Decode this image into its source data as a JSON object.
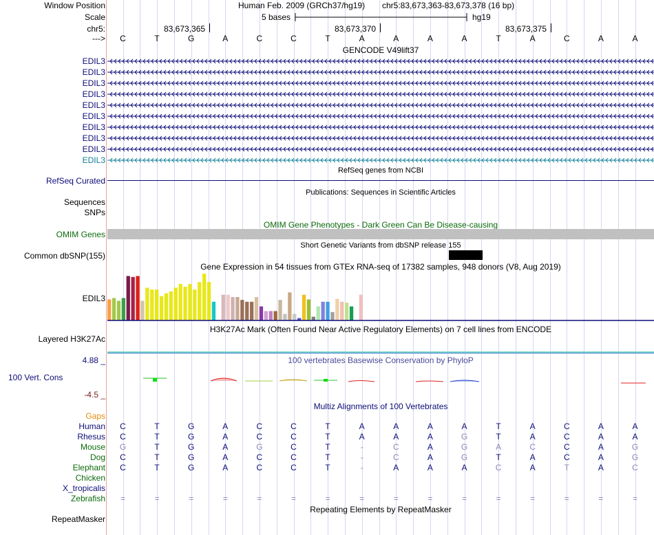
{
  "position": {
    "label": "Window Position",
    "assembly": "Human Feb. 2009 (GRCh37/hg19)",
    "range": "chr5:83,673,363-83,673,378 (16 bp)"
  },
  "scale": {
    "label": "Scale",
    "text": "5 bases",
    "db": "hg19"
  },
  "ruler": {
    "chrom_label": "chr5:",
    "ticks": [
      "83,673,365",
      "83,673,370",
      "83,673,375"
    ]
  },
  "bases": {
    "label": "--->",
    "seq": [
      "C",
      "T",
      "G",
      "A",
      "C",
      "C",
      "T",
      "A",
      "A",
      "A",
      "A",
      "T",
      "A",
      "C",
      "A",
      "A"
    ]
  },
  "gencode": {
    "title": "GENCODE V49lift37",
    "transcripts": [
      "EDIL3",
      "EDIL3",
      "EDIL3",
      "EDIL3",
      "EDIL3",
      "EDIL3",
      "EDIL3",
      "EDIL3",
      "EDIL3",
      "EDIL3"
    ],
    "colors": [
      "#0c0c78",
      "#0c0c78",
      "#0c0c78",
      "#0c0c78",
      "#0c0c78",
      "#0c0c78",
      "#0c0c78",
      "#0c0c78",
      "#0c0c78",
      "#12809a"
    ]
  },
  "refseq": {
    "title": "RefSeq genes from NCBI",
    "label": "RefSeq Curated"
  },
  "publications": {
    "title": "Publications: Sequences in Scientific Articles",
    "label1": "Sequences",
    "label2": "SNPs"
  },
  "omim": {
    "title": "OMIM Gene Phenotypes - Dark Green Can Be Disease-causing",
    "label": "OMIM Genes"
  },
  "dbsnp": {
    "title": "Short Genetic Variants from dbSNP release 155",
    "label": "Common dbSNP(155)"
  },
  "gtex": {
    "title": "Gene Expression in 54 tissues from GTEx RNA-seq of 17382 samples, 948 donors (V8, Aug 2019)",
    "label": "EDIL3",
    "bars": [
      {
        "v": 0.45,
        "c": "#f9a040"
      },
      {
        "v": 0.48,
        "c": "#a2c84a"
      },
      {
        "v": 0.42,
        "c": "#a2c84a"
      },
      {
        "v": 0.48,
        "c": "#38a048"
      },
      {
        "v": 0.95,
        "c": "#7a1a4a"
      },
      {
        "v": 0.93,
        "c": "#a8204a"
      },
      {
        "v": 0.95,
        "c": "#e02010"
      },
      {
        "v": 0.42,
        "c": "#d4c4a8"
      },
      {
        "v": 0.7,
        "c": "#e8e818"
      },
      {
        "v": 0.66,
        "c": "#e8e818"
      },
      {
        "v": 0.66,
        "c": "#e8e818"
      },
      {
        "v": 0.52,
        "c": "#e8e818"
      },
      {
        "v": 0.58,
        "c": "#e8e818"
      },
      {
        "v": 0.62,
        "c": "#e8e818"
      },
      {
        "v": 0.7,
        "c": "#e8e818"
      },
      {
        "v": 0.78,
        "c": "#e8e818"
      },
      {
        "v": 0.72,
        "c": "#e8e818"
      },
      {
        "v": 0.78,
        "c": "#e8e818"
      },
      {
        "v": 0.66,
        "c": "#e8e818"
      },
      {
        "v": 0.82,
        "c": "#e8e818"
      },
      {
        "v": 1.0,
        "c": "#e8e818"
      },
      {
        "v": 0.82,
        "c": "#e8e818"
      },
      {
        "v": 0.4,
        "c": "#18c8c8"
      },
      {
        "v": 0.0,
        "c": "#ffffff"
      },
      {
        "v": 0.55,
        "c": "#d8b8b8"
      },
      {
        "v": 0.55,
        "c": "#f0c8c8"
      },
      {
        "v": 0.5,
        "c": "#d0b0b0"
      },
      {
        "v": 0.5,
        "c": "#c8a890"
      },
      {
        "v": 0.44,
        "c": "#9a7058"
      },
      {
        "v": 0.4,
        "c": "#9a7058"
      },
      {
        "v": 0.4,
        "c": "#9a7058"
      },
      {
        "v": 0.5,
        "c": "#d8c0a0"
      },
      {
        "v": 0.3,
        "c": "#8838a8"
      },
      {
        "v": 0.2,
        "c": "#d0a0d0"
      },
      {
        "v": 0.2,
        "c": "#c080c0"
      },
      {
        "v": 0.2,
        "c": "#a06840"
      },
      {
        "v": 0.44,
        "c": "#c8b8a0"
      },
      {
        "v": 0.14,
        "c": "#c0c0c0"
      },
      {
        "v": 0.6,
        "c": "#c8a888"
      },
      {
        "v": 0.14,
        "c": "#c8c8c8"
      },
      {
        "v": 0.05,
        "c": "#5050d0"
      },
      {
        "v": 0.55,
        "c": "#f0c020"
      },
      {
        "v": 0.45,
        "c": "#9ac030"
      },
      {
        "v": 0.08,
        "c": "#808080"
      },
      {
        "v": 0.3,
        "c": "#b0e8b0"
      },
      {
        "v": 0.4,
        "c": "#8080e0"
      },
      {
        "v": 0.4,
        "c": "#40a0e0"
      },
      {
        "v": 0.18,
        "c": "#a0a0a0"
      },
      {
        "v": 0.46,
        "c": "#f0d0a8"
      },
      {
        "v": 0.4,
        "c": "#f0c0b0"
      },
      {
        "v": 0.38,
        "c": "#c0e090"
      },
      {
        "v": 0.3,
        "c": "#18a050"
      },
      {
        "v": 0.0,
        "c": "#ffffff"
      },
      {
        "v": 0.55,
        "c": "#f0c0c0"
      }
    ]
  },
  "h3k27ac": {
    "title": "H3K27Ac Mark (Often Found Near Active Regulatory Elements) on 7 cell lines from ENCODE",
    "label": "Layered H3K27Ac"
  },
  "phylop": {
    "title": "100 vertebrates Basewise Conservation by PhyloP",
    "label": "100 Vert. Cons",
    "max": "4.88 _",
    "min": "-4.5 _"
  },
  "multiz": {
    "title": "Multiz Alignments of 100 Vertebrates",
    "gaps_label": "Gaps",
    "species": [
      {
        "name": "Human",
        "color": "#0c0c78",
        "seq": [
          "C",
          "T",
          "G",
          "A",
          "C",
          "C",
          "T",
          "A",
          "A",
          "A",
          "A",
          "T",
          "A",
          "C",
          "A",
          "A"
        ],
        "dim": []
      },
      {
        "name": "Rhesus",
        "color": "#0c0c78",
        "seq": [
          "C",
          "T",
          "G",
          "A",
          "C",
          "C",
          "T",
          "A",
          "A",
          "A",
          "G",
          "T",
          "A",
          "C",
          "A",
          "A"
        ],
        "dim": [
          10
        ]
      },
      {
        "name": "Mouse",
        "color": "#0a6a0a",
        "seq": [
          "G",
          "T",
          "G",
          "A",
          "G",
          "C",
          "T",
          "-",
          "C",
          "A",
          "G",
          "A",
          "C",
          "C",
          "A",
          "G"
        ],
        "dim": [
          0,
          4,
          7,
          8,
          10,
          11,
          12,
          15
        ]
      },
      {
        "name": "Dog",
        "color": "#0a6a0a",
        "seq": [
          "C",
          "T",
          "G",
          "A",
          "C",
          "C",
          "T",
          "-",
          "C",
          "A",
          "G",
          "T",
          "A",
          "C",
          "A",
          "G"
        ],
        "dim": [
          7,
          8,
          10,
          15
        ]
      },
      {
        "name": "Elephant",
        "color": "#0a6a0a",
        "seq": [
          "C",
          "T",
          "G",
          "A",
          "C",
          "C",
          "T",
          "-",
          "A",
          "A",
          "A",
          "C",
          "A",
          "T",
          "A",
          "C"
        ],
        "dim": [
          7,
          11,
          13,
          15
        ]
      },
      {
        "name": "Chicken",
        "color": "#0a6a0a",
        "seq": [],
        "dim": []
      },
      {
        "name": "X_tropicalis",
        "color": "#0c0c78",
        "seq": [],
        "dim": []
      },
      {
        "name": "Zebrafish",
        "color": "#0a6a0a",
        "seq": [
          "=",
          "=",
          "=",
          "=",
          "=",
          "=",
          "=",
          "=",
          "=",
          "=",
          "=",
          "=",
          "=",
          "=",
          "=",
          "="
        ],
        "dim": [
          0,
          1,
          2,
          3,
          4,
          5,
          6,
          7,
          8,
          9,
          10,
          11,
          12,
          13,
          14,
          15
        ]
      }
    ]
  },
  "repeatmasker": {
    "title": "Repeating Elements by RepeatMasker",
    "label": "RepeatMasker"
  }
}
